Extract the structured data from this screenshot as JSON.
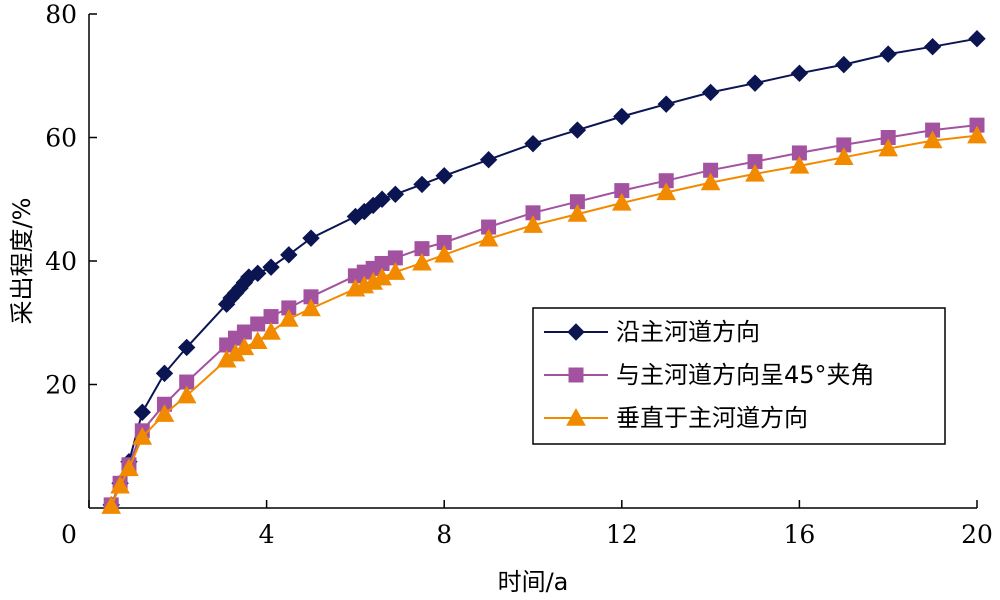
{
  "chart_data": {
    "type": "line",
    "title": "",
    "xlabel": "时间/a",
    "ylabel": "采出程度/%",
    "xlim": [
      0,
      20
    ],
    "ylim": [
      0,
      80
    ],
    "xticks": [
      0,
      4,
      8,
      12,
      16,
      20
    ],
    "yticks": [
      20,
      40,
      60,
      80
    ],
    "x_tick_labels": [
      "0",
      "4",
      "8",
      "12",
      "16",
      "20"
    ],
    "y_tick_labels": [
      "20",
      "40",
      "60",
      "80"
    ],
    "grid": false,
    "legend_position": "center-right",
    "series": [
      {
        "name": "沿主河道方向",
        "color": "#0b1552",
        "marker": "diamond",
        "x": [
          0.5,
          0.7,
          0.9,
          1.2,
          1.7,
          2.2,
          3.1,
          3.2,
          3.3,
          3.4,
          3.5,
          3.6,
          3.8,
          4.1,
          4.5,
          5.0,
          6.0,
          6.2,
          6.4,
          6.6,
          6.9,
          7.5,
          8.0,
          9.0,
          10.0,
          11.0,
          12.0,
          13.0,
          14.0,
          15.0,
          16.0,
          17.0,
          18.0,
          19.0,
          20.0
        ],
        "y": [
          0.5,
          4.0,
          7.5,
          15.5,
          21.8,
          26.0,
          33.0,
          34.0,
          34.8,
          35.6,
          36.5,
          37.4,
          38.0,
          39.0,
          41.0,
          43.7,
          47.2,
          48.0,
          49.0,
          50.0,
          50.8,
          52.4,
          53.8,
          56.4,
          59.0,
          61.2,
          63.4,
          65.4,
          67.3,
          68.8,
          70.4,
          71.8,
          73.5,
          74.7,
          76.0
        ]
      },
      {
        "name": "与主河道方向呈45°夹角",
        "color": "#a352a0",
        "marker": "square",
        "x": [
          0.5,
          0.7,
          0.9,
          1.2,
          1.7,
          2.2,
          3.1,
          3.3,
          3.5,
          3.8,
          4.1,
          4.5,
          5.0,
          6.0,
          6.2,
          6.4,
          6.6,
          6.9,
          7.5,
          8.0,
          9.0,
          10.0,
          11.0,
          12.0,
          13.0,
          14.0,
          15.0,
          16.0,
          17.0,
          18.0,
          19.0,
          20.0
        ],
        "y": [
          0.5,
          4.0,
          7.0,
          12.5,
          16.8,
          20.4,
          26.4,
          27.5,
          28.5,
          29.8,
          31.0,
          32.4,
          34.2,
          37.6,
          38.2,
          38.8,
          39.6,
          40.5,
          42.0,
          43.0,
          45.5,
          47.8,
          49.6,
          51.4,
          53.0,
          54.7,
          56.1,
          57.5,
          58.8,
          60.0,
          61.2,
          62.0
        ]
      },
      {
        "name": "垂直于主河道方向",
        "color": "#f28a00",
        "marker": "triangle",
        "x": [
          0.5,
          0.7,
          0.9,
          1.2,
          1.7,
          2.2,
          3.1,
          3.3,
          3.5,
          3.8,
          4.1,
          4.5,
          5.0,
          6.0,
          6.2,
          6.4,
          6.6,
          6.9,
          7.5,
          8.0,
          9.0,
          10.0,
          11.0,
          12.0,
          13.0,
          14.0,
          15.0,
          16.0,
          17.0,
          18.0,
          19.0,
          20.0
        ],
        "y": [
          0.3,
          3.6,
          6.4,
          11.5,
          15.2,
          18.2,
          24.0,
          25.0,
          26.0,
          27.0,
          28.5,
          30.6,
          32.3,
          35.5,
          36.0,
          36.6,
          37.3,
          38.2,
          39.7,
          41.0,
          43.6,
          45.8,
          47.6,
          49.4,
          51.1,
          52.7,
          54.1,
          55.4,
          56.8,
          58.2,
          59.5,
          60.3
        ]
      }
    ]
  }
}
